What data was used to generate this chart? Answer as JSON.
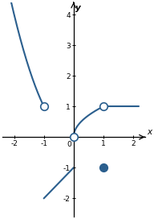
{
  "xlim": [
    -2.4,
    2.4
  ],
  "ylim": [
    -2.6,
    4.4
  ],
  "xticks": [
    -2,
    -1,
    1,
    2
  ],
  "yticks": [
    -2,
    -1,
    1,
    2,
    3,
    4
  ],
  "line_color": "#2b5f8e",
  "line_width": 1.5,
  "open_circle_size": 28,
  "closed_circle_size": 28,
  "xlabel": "x",
  "ylabel": "y",
  "figsize": [
    1.92,
    2.72
  ],
  "dpi": 100,
  "seg1_x_start": -2.2,
  "seg1_x_end": -1.0,
  "seg2_x_start": -1.0,
  "seg2_x_end": 0.0,
  "seg3_x_start": 0.0,
  "seg3_x_end": 1.0,
  "seg5_x_start": 1.0,
  "seg5_x_end": 2.2,
  "open_circles": [
    [
      -1,
      1
    ],
    [
      0,
      0
    ],
    [
      1,
      1
    ]
  ],
  "closed_circles": [
    [
      1,
      -1
    ]
  ]
}
